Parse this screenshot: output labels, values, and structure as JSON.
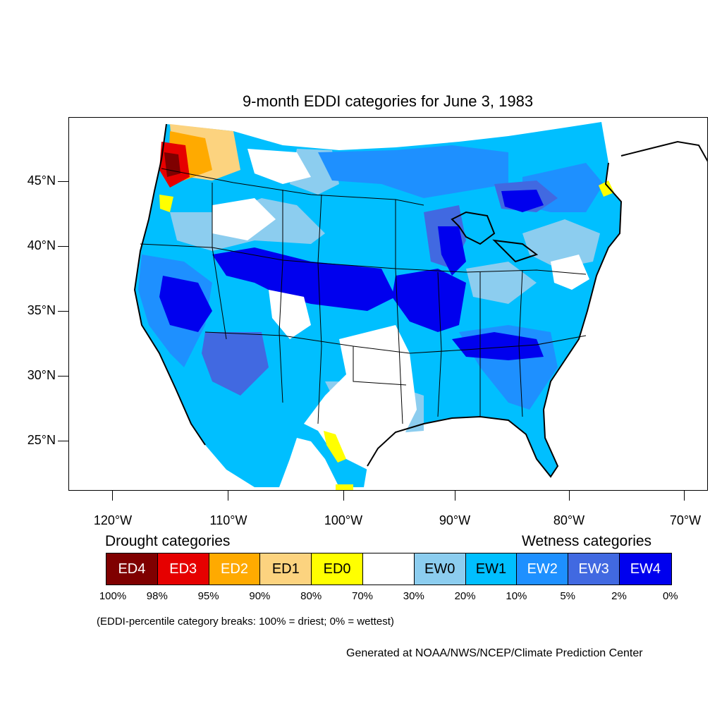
{
  "title": "9-month EDDI categories for June 3, 1983",
  "latitude_labels": [
    "45°N",
    "40°N",
    "35°N",
    "30°N",
    "25°N"
  ],
  "longitude_labels": [
    "120°W",
    "110°W",
    "100°W",
    "90°W",
    "80°W",
    "70°W"
  ],
  "legend": {
    "drought_heading": "Drought categories",
    "wetness_heading": "Wetness categories",
    "categories": [
      {
        "label": "ED4",
        "color": "#7f0000",
        "text_color": "#ffffff"
      },
      {
        "label": "ED3",
        "color": "#e60000",
        "text_color": "#ffffff"
      },
      {
        "label": "ED2",
        "color": "#ffaa00",
        "text_color": "#ffffff"
      },
      {
        "label": "ED1",
        "color": "#fcd37f",
        "text_color": "#000000"
      },
      {
        "label": "ED0",
        "color": "#ffff00",
        "text_color": "#000000"
      },
      {
        "label": "",
        "color": "#ffffff",
        "text_color": "#000000"
      },
      {
        "label": "EW0",
        "color": "#8ccdef",
        "text_color": "#000000"
      },
      {
        "label": "EW1",
        "color": "#00bfff",
        "text_color": "#000000"
      },
      {
        "label": "EW2",
        "color": "#1e90ff",
        "text_color": "#ffffff"
      },
      {
        "label": "EW3",
        "color": "#4169e1",
        "text_color": "#ffffff"
      },
      {
        "label": "EW4",
        "color": "#0000ee",
        "text_color": "#ffffff"
      }
    ],
    "breaks": [
      "100%",
      "98%",
      "95%",
      "90%",
      "80%",
      "70%",
      "30%",
      "20%",
      "10%",
      "5%",
      "2%",
      "0%"
    ]
  },
  "note": "(EDDI-percentile category breaks: 100% = driest; 0% = wettest)",
  "credit": "Generated at NOAA/NWS/NCEP/Climate Prediction Center"
}
